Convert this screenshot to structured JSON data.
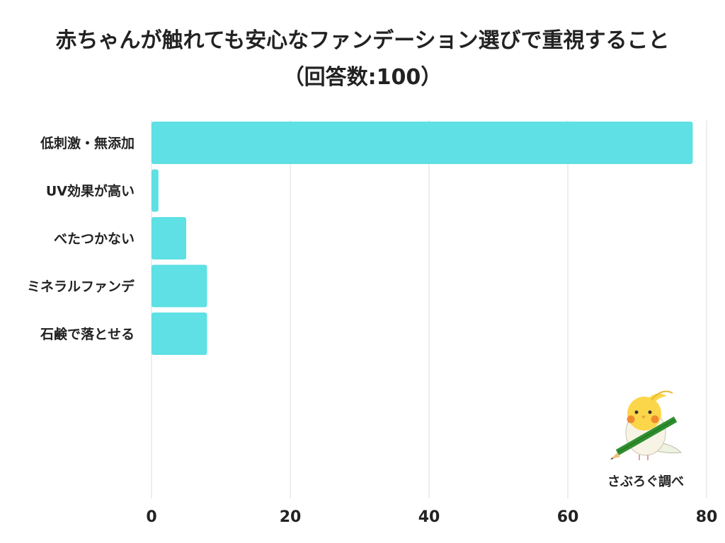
{
  "chart_data": {
    "type": "bar",
    "orientation": "horizontal",
    "title": "赤ちゃんが触れても安心なファンデーション選びで重視すること",
    "subtitle": "（回答数:100）",
    "categories": [
      "低刺激・無添加",
      "UV効果が高い",
      "べたつかない",
      "ミネラルファンデ",
      "石鹸で落とせる"
    ],
    "values": [
      78,
      1,
      5,
      8,
      8
    ],
    "xlabel": "",
    "ylabel": "",
    "xlim": [
      0,
      80
    ],
    "xticks": [
      0,
      20,
      40,
      60,
      80
    ],
    "grid": true,
    "bar_color": "#5ee0e4",
    "grid_color": "#dddddd"
  },
  "credit": {
    "text": "さぶろぐ調べ",
    "icon": "bird-mascot-with-pencil"
  }
}
